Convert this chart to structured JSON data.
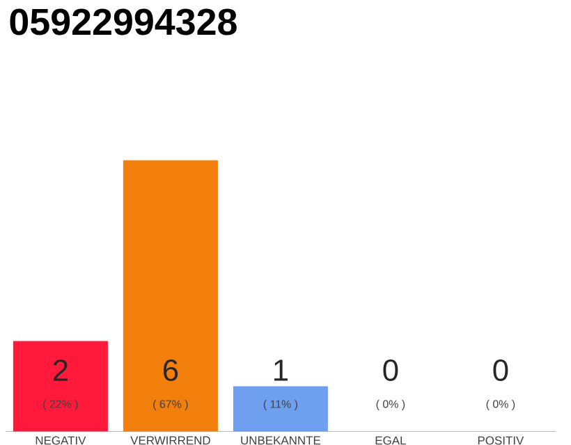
{
  "chart_data": {
    "type": "bar",
    "title": "05922994328",
    "categories": [
      "NEGATIV",
      "VERWIRREND",
      "UNBEKANNTE",
      "EGAL",
      "POSITIV"
    ],
    "values": [
      2,
      6,
      1,
      0,
      0
    ],
    "colors": [
      "#ff1a3c",
      "#f27e0c",
      "#6fa0ef",
      "#cccccc",
      "#cccccc"
    ],
    "ylim": [
      0,
      6
    ],
    "data_labels": true,
    "annotations": [
      "( 22% )",
      "( 67% )",
      "( 11% )",
      "( 0% )",
      "( 0% )"
    ]
  }
}
